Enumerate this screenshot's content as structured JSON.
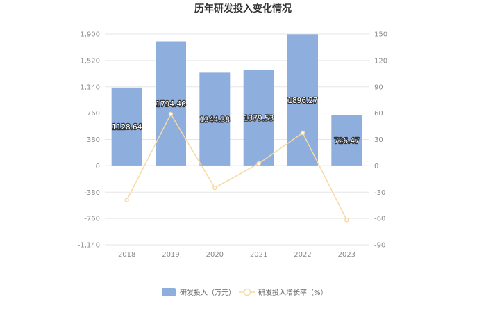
{
  "chart_data": {
    "type": "bar",
    "title": "历年研发投入变化情况",
    "categories": [
      "2018",
      "2019",
      "2020",
      "2021",
      "2022",
      "2023"
    ],
    "series": [
      {
        "name": "研发投入（万元）",
        "type": "bar",
        "axis": "left",
        "values": [
          1128.64,
          1794.46,
          1344.38,
          1379.53,
          1896.27,
          726.47
        ],
        "labels": [
          "1128.64",
          "1794.46",
          "1344.38",
          "1379.53",
          "1896.27",
          "726.47"
        ],
        "color": "#8eaedd"
      },
      {
        "name": "研发投入增长率（%）",
        "type": "line",
        "axis": "right",
        "values": [
          -39.0,
          59.0,
          -25.1,
          2.6,
          37.5,
          -61.7
        ],
        "color": "#f8d9a2"
      }
    ],
    "y_left": {
      "ylim": [
        -1140,
        1900
      ],
      "ticks": [
        1900,
        1520,
        1140,
        760,
        380,
        0,
        -380,
        -760,
        -1140
      ],
      "tick_labels": [
        "1,900",
        "1,520",
        "1,140",
        "760",
        "380",
        "0",
        "-380",
        "-760",
        "-1,140"
      ]
    },
    "y_right": {
      "ylim": [
        -90,
        150
      ],
      "ticks": [
        150,
        120,
        90,
        60,
        30,
        0,
        -30,
        -60,
        -90
      ],
      "tick_labels": [
        "150",
        "120",
        "90",
        "60",
        "30",
        "0",
        "-30",
        "-60",
        "-90"
      ]
    },
    "grid": true,
    "legend_position": "bottom-center"
  }
}
